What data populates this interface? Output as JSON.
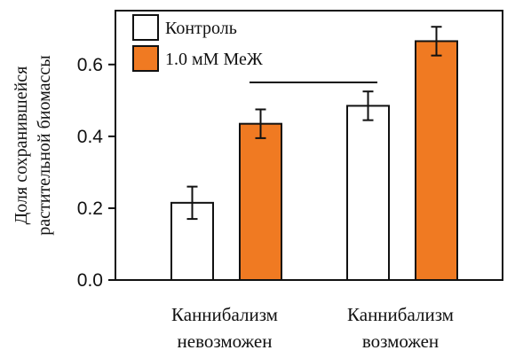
{
  "chart_data": {
    "type": "bar",
    "title": "",
    "xlabel": "",
    "ylabel_lines": [
      "Доля сохранившейся",
      "растительной биомассы"
    ],
    "categories": [
      [
        "Каннибализм",
        "невозможен"
      ],
      [
        "Каннибализм",
        "возможен"
      ]
    ],
    "ylim": [
      0,
      0.75
    ],
    "yticks": [
      0.0,
      0.2,
      0.4,
      0.6
    ],
    "ytick_labels": [
      "0.0",
      "0.2",
      "0.4",
      "0.6"
    ],
    "grid": false,
    "legend_position": "top-left",
    "series": [
      {
        "name": "Контроль",
        "color": "#ffffff",
        "values": [
          0.215,
          0.485
        ],
        "errors": [
          0.045,
          0.04
        ]
      },
      {
        "name": "1.0 мМ МеЖ",
        "color": "#f07a22",
        "values": [
          0.435,
          0.665
        ],
        "errors": [
          0.04,
          0.04
        ]
      }
    ],
    "annotation": "horizontal line between groups"
  }
}
